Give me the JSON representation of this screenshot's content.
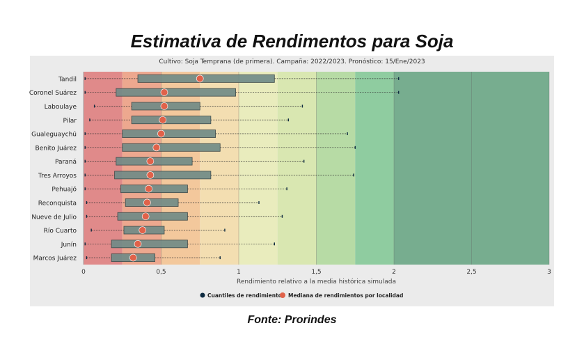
{
  "title": "Estimativa de Rendimentos para Soja",
  "subtitle": "Cultivo: Soja Temprana (de primera). Campaña: 2022/2023. Pronóstico: 15/Ene/2023",
  "source": "Fonte: Prorindes",
  "chart_data": {
    "type": "boxplot",
    "xlabel": "Rendimiento relativo a la media histórica simulada",
    "xlim": [
      0,
      3
    ],
    "xticks": [
      0,
      0.5,
      1,
      1.5,
      2,
      2.5,
      3
    ],
    "xtick_labels": [
      "0",
      "0,5",
      "1",
      "1,5",
      "2",
      "2,5",
      "3"
    ],
    "grid": true,
    "legend_position": "bottom-center",
    "legend": [
      {
        "label": "Cuantiles de rendimiento",
        "color": "#0d2a40"
      },
      {
        "label": "Mediana de rendimientos por localidad",
        "color": "#e0624a"
      }
    ],
    "background_bands": [
      {
        "from": 0,
        "to": 0.25,
        "color": "#e08a8a"
      },
      {
        "from": 0.25,
        "to": 0.5,
        "color": "#eda88f"
      },
      {
        "from": 0.5,
        "to": 0.75,
        "color": "#f3c89c"
      },
      {
        "from": 0.75,
        "to": 1,
        "color": "#f3deb1"
      },
      {
        "from": 1,
        "to": 1.25,
        "color": "#e9ecbd"
      },
      {
        "from": 1.25,
        "to": 1.5,
        "color": "#d9e7b1"
      },
      {
        "from": 1.5,
        "to": 1.75,
        "color": "#b7dba5"
      },
      {
        "from": 1.75,
        "to": 2,
        "color": "#8fcca0"
      },
      {
        "from": 2,
        "to": 3,
        "color": "#77ad8f"
      }
    ],
    "categories": [
      "Tandil",
      "Coronel Suárez",
      "Laboulaye",
      "Pilar",
      "Gualeguaychú",
      "Benito Juárez",
      "Paraná",
      "Tres Arroyos",
      "Pehuajó",
      "Reconquista",
      "Nueve de Julio",
      "Río Cuarto",
      "Junín",
      "Marcos Juárez"
    ],
    "min": [
      0.01,
      0.01,
      0.07,
      0.04,
      0.01,
      0.01,
      0.01,
      0.01,
      0.01,
      0.02,
      0.02,
      0.05,
      0.01,
      0.02
    ],
    "q1": [
      0.35,
      0.21,
      0.31,
      0.31,
      0.25,
      0.25,
      0.21,
      0.2,
      0.24,
      0.27,
      0.22,
      0.26,
      0.18,
      0.18
    ],
    "median": [
      0.75,
      0.52,
      0.52,
      0.51,
      0.5,
      0.47,
      0.43,
      0.43,
      0.42,
      0.41,
      0.4,
      0.38,
      0.35,
      0.32
    ],
    "q3": [
      1.23,
      0.98,
      0.75,
      0.82,
      0.85,
      0.88,
      0.7,
      0.82,
      0.67,
      0.61,
      0.67,
      0.52,
      0.67,
      0.46
    ],
    "max": [
      2.03,
      2.03,
      1.41,
      1.32,
      1.7,
      1.75,
      1.42,
      1.74,
      1.31,
      1.13,
      1.28,
      0.91,
      1.23,
      0.88
    ]
  }
}
